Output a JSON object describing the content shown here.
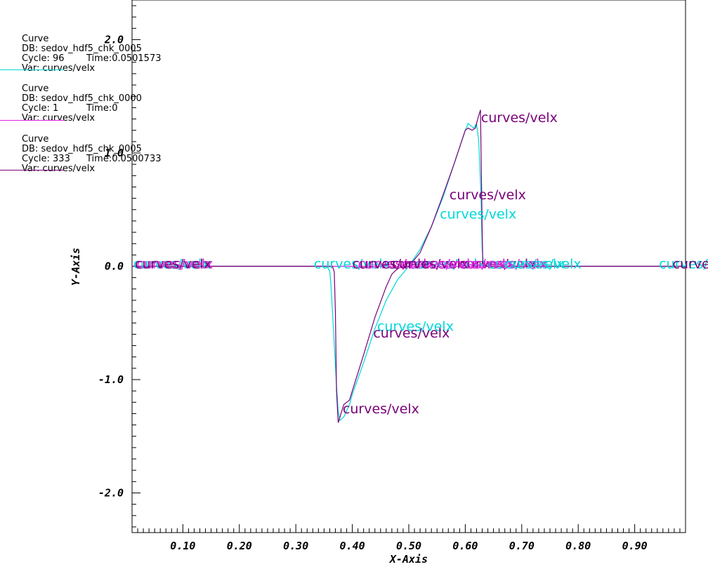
{
  "chart_data": {
    "type": "line",
    "xlabel": "X-Axis",
    "ylabel": "Y-Axis",
    "xlim": [
      0.01,
      0.99
    ],
    "ylim": [
      -2.35,
      2.35
    ],
    "xticks": [
      0.1,
      0.2,
      0.3,
      0.4,
      0.5,
      0.6,
      0.7,
      0.8,
      0.9
    ],
    "xtick_labels": [
      "0.10",
      "0.20",
      "0.30",
      "0.40",
      "0.50",
      "0.60",
      "0.70",
      "0.80",
      "0.90"
    ],
    "yticks": [
      -2.0,
      -1.0,
      0.0,
      1.0,
      2.0
    ],
    "ytick_labels": [
      "-2.0",
      "-1.0",
      "0.0",
      "1.0",
      "2.0"
    ],
    "grid": false,
    "legend_position": "top-left",
    "series": [
      {
        "name": "Curve",
        "db": "DB: sedov_hdf5_chk_0005",
        "cycle": "Cycle: 96",
        "time": "Time:0.0501573",
        "var": "Var: curves/velx",
        "color": "#00d8d8",
        "x": [
          0.01,
          0.355,
          0.36,
          0.362,
          0.365,
          0.368,
          0.372,
          0.375,
          0.378,
          0.385,
          0.395,
          0.4,
          0.42,
          0.44,
          0.46,
          0.48,
          0.5,
          0.52,
          0.54,
          0.56,
          0.58,
          0.6,
          0.605,
          0.615,
          0.62,
          0.624,
          0.628,
          0.63,
          0.632,
          0.64,
          0.99
        ],
        "y": [
          0.0,
          0.0,
          -0.04,
          -0.15,
          -0.4,
          -0.7,
          -1.05,
          -1.28,
          -1.36,
          -1.33,
          -1.22,
          -1.13,
          -0.85,
          -0.55,
          -0.3,
          -0.12,
          0.0,
          0.15,
          0.35,
          0.6,
          0.9,
          1.2,
          1.26,
          1.22,
          1.26,
          1.1,
          0.6,
          0.15,
          0.03,
          0.0,
          0.0
        ]
      },
      {
        "name": "Curve",
        "db": "DB: sedov_hdf5_chk_0000",
        "cycle": "Cycle: 1",
        "time": "Time:0",
        "var": "Var: curves/velx",
        "color": "#e020e0",
        "x": [
          0.01,
          0.99
        ],
        "y": [
          0.0,
          0.0
        ]
      },
      {
        "name": "Curve",
        "db": "DB: sedov_hdf5_chk_0005",
        "cycle": "Cycle: 333",
        "time": "Time:0.0500733",
        "var": "Var: curves/velx",
        "color": "#780078",
        "x": [
          0.01,
          0.365,
          0.368,
          0.37,
          0.372,
          0.375,
          0.38,
          0.385,
          0.39,
          0.395,
          0.4,
          0.42,
          0.44,
          0.46,
          0.47,
          0.48,
          0.49,
          0.5,
          0.52,
          0.54,
          0.56,
          0.58,
          0.6,
          0.605,
          0.612,
          0.618,
          0.622,
          0.627,
          0.628,
          0.63,
          0.631,
          0.635,
          0.99
        ],
        "y": [
          0.0,
          0.0,
          -0.05,
          -0.4,
          -1.1,
          -1.38,
          -1.3,
          -1.22,
          -1.2,
          -1.18,
          -1.1,
          -0.78,
          -0.45,
          -0.18,
          -0.07,
          -0.02,
          0.0,
          0.0,
          0.12,
          0.35,
          0.62,
          0.9,
          1.2,
          1.22,
          1.2,
          1.22,
          1.3,
          1.38,
          1.0,
          0.3,
          0.05,
          0.0,
          0.0
        ]
      }
    ],
    "annotations": [
      {
        "text": "curves/velx",
        "x": 0.012,
        "y": 0.0,
        "color": "#00d8d8"
      },
      {
        "text": "curves/velx",
        "x": 0.018,
        "y": 0.0,
        "color": "#e020e0"
      },
      {
        "text": "curves/velx",
        "x": 0.015,
        "y": 0.0,
        "color": "#780078"
      },
      {
        "text": "curves/velx",
        "x": 0.332,
        "y": 0.0,
        "color": "#00d8d8"
      },
      {
        "text": "curves/velx",
        "x": 0.41,
        "y": 0.0,
        "color": "#e020e0"
      },
      {
        "text": "curves/velx",
        "x": 0.4,
        "y": 0.0,
        "color": "#780078"
      },
      {
        "text": "curves/velx",
        "x": 0.5,
        "y": 0.0,
        "color": "#00d8d8"
      },
      {
        "text": "curves/velx",
        "x": 0.487,
        "y": 0.0,
        "color": "#e020e0"
      },
      {
        "text": "curves/velx",
        "x": 0.47,
        "y": 0.0,
        "color": "#780078"
      },
      {
        "text": "curves/velx",
        "x": 0.59,
        "y": 0.0,
        "color": "#780078"
      },
      {
        "text": "curves/velx",
        "x": 0.55,
        "y": 0.0,
        "color": "#e020e0"
      },
      {
        "text": "curves/velx",
        "x": 0.64,
        "y": 0.0,
        "color": "#00d8d8"
      },
      {
        "text": "curves/velx",
        "x": 0.61,
        "y": 0.0,
        "color": "#e020e0"
      },
      {
        "text": "curves/velx",
        "x": 0.67,
        "y": 0.0,
        "color": "#00d8d8"
      },
      {
        "text": "curves/velx",
        "x": 0.943,
        "y": 0.0,
        "color": "#00d8d8"
      },
      {
        "text": "curves/velx",
        "x": 0.967,
        "y": 0.0,
        "color": "#780078"
      },
      {
        "text": "curves/velx",
        "x": 0.383,
        "y": -1.28,
        "color": "#780078"
      },
      {
        "text": "curves/velx",
        "x": 0.444,
        "y": -0.55,
        "color": "#00d8d8"
      },
      {
        "text": "curves/velx",
        "x": 0.437,
        "y": -0.61,
        "color": "#780078"
      },
      {
        "text": "curves/velx",
        "x": 0.555,
        "y": 0.44,
        "color": "#00d8d8"
      },
      {
        "text": "curves/velx",
        "x": 0.572,
        "y": 0.61,
        "color": "#780078"
      },
      {
        "text": "curves/velx",
        "x": 0.628,
        "y": 1.29,
        "color": "#780078"
      }
    ]
  }
}
